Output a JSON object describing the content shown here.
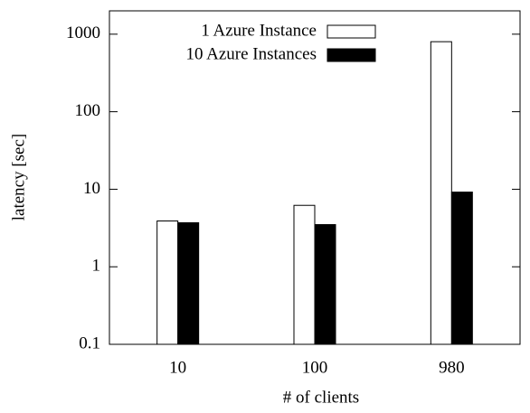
{
  "chart_data": {
    "type": "bar",
    "x_label": "# of clients",
    "y_label": "latency [sec]",
    "categories": [
      "10",
      "100",
      "980"
    ],
    "series": [
      {
        "name": "1 Azure Instance",
        "color": "#ffffff",
        "values": [
          3.9,
          6.2,
          800
        ]
      },
      {
        "name": "10 Azure Instances",
        "color": "#000000",
        "values": [
          3.7,
          3.5,
          9.2
        ]
      }
    ],
    "log_y": true,
    "ylim": [
      0.1,
      2000
    ],
    "yticks": [
      0.1,
      1,
      10,
      100,
      1000
    ],
    "legend": "top-right"
  }
}
